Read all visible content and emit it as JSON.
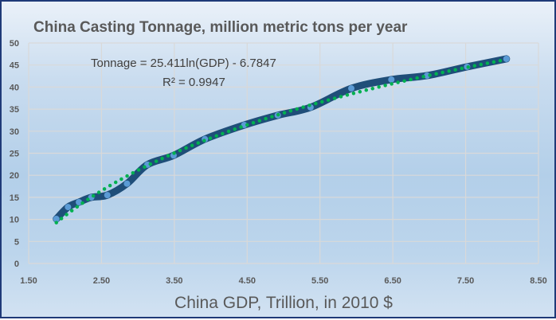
{
  "chart_data": {
    "type": "scatter",
    "title": "China Casting Tonnage, million metric tons per year",
    "xlabel": "China GDP, Trillion, in 2010 $",
    "ylabel": "",
    "xlim": [
      1.5,
      8.5
    ],
    "ylim": [
      0,
      50
    ],
    "xticks": [
      "1.50",
      "2.50",
      "3.50",
      "4.50",
      "5.50",
      "6.50",
      "7.50",
      "8.50"
    ],
    "yticks": [
      "0",
      "5",
      "10",
      "15",
      "20",
      "25",
      "30",
      "35",
      "40",
      "45",
      "50"
    ],
    "grid": true,
    "legend": "none",
    "series": [
      {
        "name": "Tonnage",
        "style": "smoothed line with markers",
        "color": "#1f4e79",
        "marker_color": "#5b9bd5",
        "x": [
          1.88,
          2.04,
          2.19,
          2.36,
          2.58,
          2.85,
          3.13,
          3.49,
          3.92,
          4.46,
          4.92,
          5.37,
          5.93,
          6.48,
          6.97,
          7.52,
          8.06
        ],
        "y": [
          10.1,
          12.8,
          13.9,
          15.0,
          15.5,
          18.1,
          22.4,
          24.5,
          28.2,
          31.4,
          33.6,
          35.4,
          39.7,
          41.7,
          42.6,
          44.6,
          46.4
        ]
      }
    ],
    "trendline": {
      "type": "logarithmic",
      "a": 25.411,
      "b": -6.7847,
      "color": "#00b050",
      "style": "dotted"
    },
    "annotations": {
      "equation": "Tonnage = 25.411ln(GDP) - 6.7847",
      "r_squared": "R² = 0.9947"
    }
  }
}
